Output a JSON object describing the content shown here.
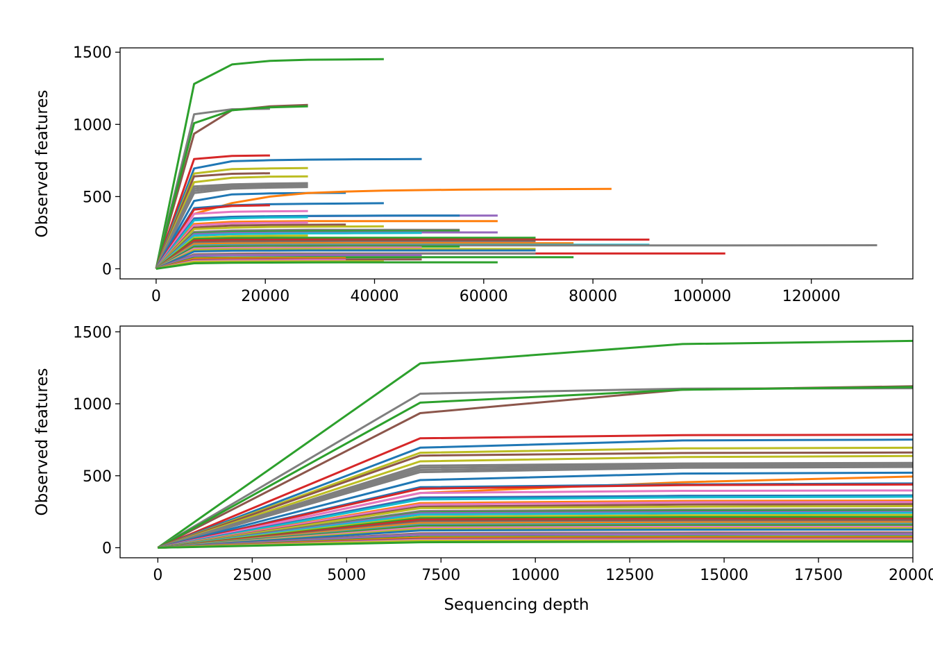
{
  "chart_data": [
    {
      "type": "line",
      "title": "",
      "xlabel": "",
      "ylabel": "Observed features",
      "xlim": [
        -6600,
        138600
      ],
      "ylim": [
        -70,
        1530
      ],
      "xticks": [
        0,
        20000,
        40000,
        60000,
        80000,
        100000,
        120000
      ],
      "yticks": [
        0,
        500,
        1000,
        1500
      ],
      "grid": false,
      "legend": "none",
      "series_source": "shared"
    },
    {
      "type": "line",
      "title": "",
      "xlabel": "Sequencing depth",
      "ylabel": "Observed features",
      "xlim": [
        -1000,
        20000
      ],
      "ylim": [
        -70,
        1540
      ],
      "xticks": [
        0,
        2500,
        5000,
        7500,
        10000,
        12500,
        15000,
        17500,
        20000
      ],
      "yticks": [
        0,
        500,
        1000,
        1500
      ],
      "grid": false,
      "legend": "none",
      "series_source": "shared"
    }
  ],
  "x_depths": [
    0,
    6950,
    13900,
    20850,
    27800,
    34750,
    41700,
    48650,
    55600,
    62550,
    69500,
    76450,
    83400,
    90350,
    104250,
    132050
  ],
  "series": [
    {
      "color": "#2ca02c",
      "values": [
        0,
        1280,
        1415,
        1440,
        1448,
        1450,
        1452
      ]
    },
    {
      "color": "#7f7f7f",
      "values": [
        0,
        1070,
        1105,
        1108
      ]
    },
    {
      "color": "#8c564b",
      "values": [
        0,
        935,
        1098,
        1125,
        1135
      ]
    },
    {
      "color": "#2ca02c",
      "values": [
        0,
        1008,
        1098,
        1118,
        1125
      ]
    },
    {
      "color": "#d62728",
      "values": [
        0,
        760,
        782,
        785
      ]
    },
    {
      "color": "#1f77b4",
      "values": [
        0,
        695,
        745,
        752,
        756,
        758,
        759,
        760
      ]
    },
    {
      "color": "#bcbd22",
      "values": [
        0,
        660,
        690,
        695,
        698
      ]
    },
    {
      "color": "#8c564b",
      "values": [
        0,
        640,
        658,
        662
      ]
    },
    {
      "color": "#bcbd22",
      "values": [
        0,
        600,
        630,
        638,
        640
      ]
    },
    {
      "color": "#7f7f7f",
      "values": [
        0,
        570,
        585,
        590,
        593
      ]
    },
    {
      "color": "#7f7f7f",
      "values": [
        0,
        555,
        575,
        580,
        583
      ]
    },
    {
      "color": "#7f7f7f",
      "values": [
        0,
        540,
        565,
        572,
        575
      ]
    },
    {
      "color": "#7f7f7f",
      "values": [
        0,
        525,
        555,
        562,
        566
      ]
    },
    {
      "color": "#1f77b4",
      "values": [
        0,
        470,
        515,
        522,
        525,
        526
      ]
    },
    {
      "color": "#ff7f0e",
      "values": [
        0,
        380,
        455,
        500,
        525,
        535,
        541,
        545,
        548,
        550,
        551,
        552,
        553
      ]
    },
    {
      "color": "#1f77b4",
      "values": [
        0,
        420,
        440,
        447,
        450,
        452,
        454
      ]
    },
    {
      "color": "#d62728",
      "values": [
        0,
        410,
        435,
        440
      ]
    },
    {
      "color": "#e377c2",
      "values": [
        0,
        380,
        395,
        398,
        400
      ]
    },
    {
      "color": "#9467bd",
      "values": [
        0,
        350,
        360,
        363,
        365,
        366,
        367,
        368,
        368,
        368
      ]
    },
    {
      "color": "#1f77b4",
      "values": [
        0,
        345,
        360,
        364,
        366,
        367,
        368,
        368,
        368
      ]
    },
    {
      "color": "#17becf",
      "values": [
        0,
        335,
        350,
        355,
        357
      ]
    },
    {
      "color": "#ff7f0e",
      "values": [
        0,
        310,
        325,
        328,
        330,
        330,
        330,
        330,
        330,
        330
      ]
    },
    {
      "color": "#e377c2",
      "values": [
        0,
        300,
        315,
        318,
        320
      ]
    },
    {
      "color": "#8c564b",
      "values": [
        0,
        285,
        300,
        303,
        305,
        306
      ]
    },
    {
      "color": "#bcbd22",
      "values": [
        0,
        275,
        285,
        290,
        292,
        293,
        294
      ]
    },
    {
      "color": "#7f7f7f",
      "values": [
        0,
        255,
        265,
        268,
        270,
        270,
        270,
        270,
        270
      ]
    },
    {
      "color": "#2ca02c",
      "values": [
        0,
        245,
        255,
        258,
        260,
        261,
        261,
        261,
        262
      ]
    },
    {
      "color": "#9467bd",
      "values": [
        0,
        240,
        248,
        250,
        251,
        251,
        252,
        252,
        252,
        252
      ]
    },
    {
      "color": "#17becf",
      "values": [
        0,
        230,
        240,
        243,
        245,
        246,
        247,
        248
      ]
    },
    {
      "color": "#bcbd22",
      "values": [
        0,
        215,
        225,
        228,
        230
      ]
    },
    {
      "color": "#2ca02c",
      "values": [
        0,
        205,
        212,
        214,
        215,
        215,
        215,
        215,
        215,
        215,
        215
      ]
    },
    {
      "color": "#d62728",
      "values": [
        0,
        195,
        200,
        201,
        202,
        202,
        202,
        202,
        202,
        202,
        202,
        202,
        202,
        202
      ]
    },
    {
      "color": "#8c564b",
      "values": [
        0,
        185,
        192,
        193,
        194,
        195,
        195,
        195,
        195,
        195,
        195
      ]
    },
    {
      "color": "#7f7f7f",
      "values": [
        0,
        175,
        180,
        181,
        182,
        182,
        182,
        182,
        182,
        182,
        182
      ]
    },
    {
      "color": "#ff7f0e",
      "values": [
        0,
        170,
        175,
        176,
        177,
        177,
        177,
        177,
        177,
        177,
        177,
        177
      ]
    },
    {
      "color": "#17becf",
      "values": [
        0,
        160,
        165,
        166,
        167,
        167,
        167,
        167,
        167,
        167,
        167,
        167,
        167,
        167
      ]
    },
    {
      "color": "#7f7f7f",
      "values": [
        0,
        155,
        160,
        161,
        162,
        162,
        162,
        162,
        162,
        162,
        162,
        162,
        162,
        162,
        162,
        163
      ]
    },
    {
      "color": "#2ca02c",
      "values": [
        0,
        150,
        153,
        154,
        155,
        155,
        155,
        155,
        155
      ]
    },
    {
      "color": "#e377c2",
      "values": [
        0,
        140,
        145,
        146,
        146,
        147,
        147,
        147
      ]
    },
    {
      "color": "#bcbd22",
      "values": [
        0,
        130,
        135,
        136,
        137,
        137,
        137,
        137,
        137,
        137,
        137
      ]
    },
    {
      "color": "#1f77b4",
      "values": [
        0,
        120,
        125,
        126,
        127,
        127,
        127,
        127,
        127,
        127,
        127
      ]
    },
    {
      "color": "#d62728",
      "values": [
        0,
        100,
        105,
        106,
        106,
        106,
        106,
        106,
        106,
        106,
        106,
        106,
        106,
        106,
        106
      ]
    },
    {
      "color": "#7f7f7f",
      "values": [
        0,
        98,
        103,
        104,
        105,
        105,
        105,
        105,
        105,
        105,
        105
      ]
    },
    {
      "color": "#9467bd",
      "values": [
        0,
        90,
        94,
        95,
        95,
        95,
        95,
        95
      ]
    },
    {
      "color": "#2ca02c",
      "values": [
        0,
        75,
        78,
        79,
        80,
        80,
        80,
        80,
        80,
        80,
        80,
        80
      ]
    },
    {
      "color": "#ff7f0e",
      "values": [
        0,
        70,
        72,
        73,
        73,
        73
      ]
    },
    {
      "color": "#8c564b",
      "values": [
        0,
        62,
        64,
        65,
        65,
        65,
        65,
        65
      ]
    },
    {
      "color": "#e377c2",
      "values": [
        0,
        55,
        58,
        59,
        60,
        60
      ]
    },
    {
      "color": "#bcbd22",
      "values": [
        0,
        48,
        50,
        51,
        51,
        51,
        51
      ]
    },
    {
      "color": "#2ca02c",
      "values": [
        0,
        38,
        42,
        43,
        44,
        45,
        45,
        45,
        45,
        45
      ]
    }
  ]
}
